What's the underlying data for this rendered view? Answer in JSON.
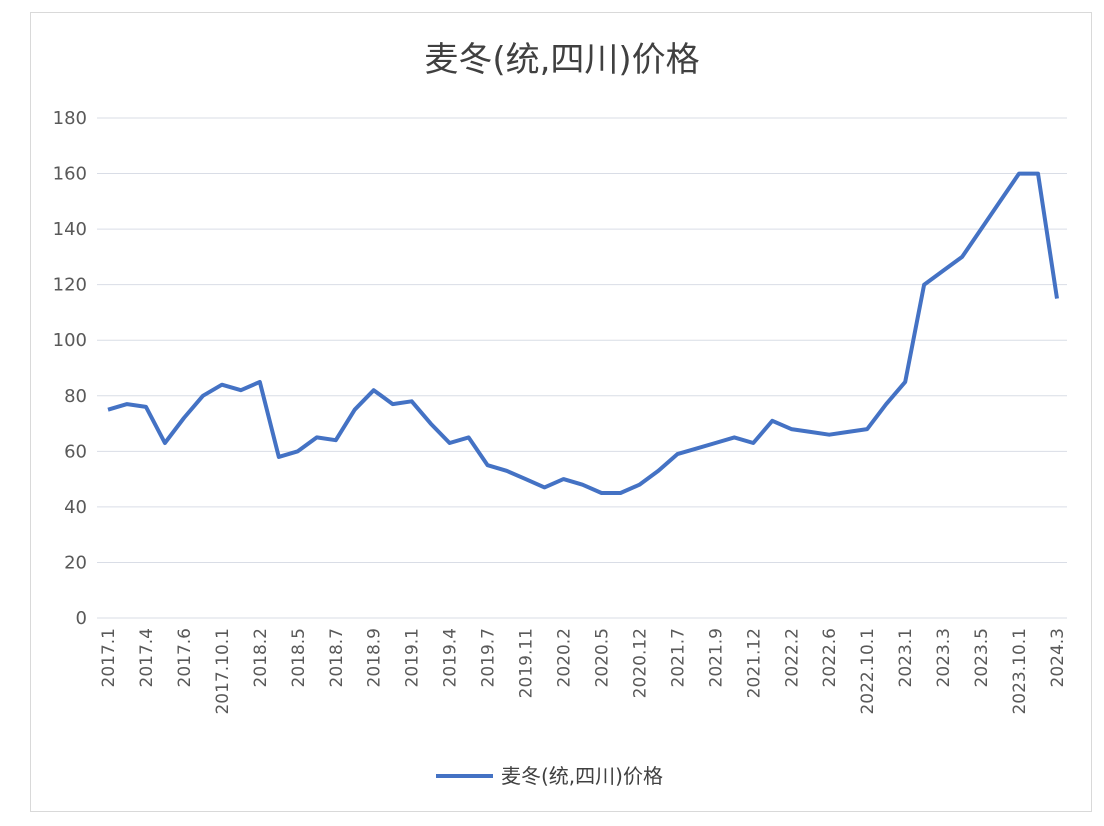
{
  "chart_data": {
    "type": "line",
    "title": "麦冬(统,四川)价格",
    "xlabel": "",
    "ylabel": "",
    "ylim": [
      0,
      180
    ],
    "yticks": [
      0,
      20,
      40,
      60,
      80,
      100,
      120,
      140,
      160,
      180
    ],
    "grid": true,
    "legend_position": "bottom",
    "x_tick_labels": [
      "2017.1",
      "2017.4",
      "2017.6",
      "2017.10.1",
      "2018.2",
      "2018.5",
      "2018.7",
      "2018.9",
      "2019.1",
      "2019.4",
      "2019.7",
      "2019.11",
      "2020.2",
      "2020.5",
      "2020.12",
      "2021.7",
      "2021.9",
      "2021.12",
      "2022.2",
      "2022.6",
      "2022.10.1",
      "2023.1",
      "2023.3",
      "2023.5",
      "2023.10.1",
      "2024.3"
    ],
    "x_tick_positions": [
      0,
      2,
      4,
      6,
      8,
      10,
      12,
      14,
      16,
      18,
      20,
      22,
      24,
      26,
      28,
      30,
      32,
      34,
      36,
      38,
      40,
      42,
      44,
      46,
      48,
      50
    ],
    "colors": {
      "series": "#4472c4"
    },
    "series": [
      {
        "name": "麦冬(统,四川)价格",
        "values": [
          75,
          77,
          76,
          63,
          72,
          80,
          84,
          82,
          85,
          58,
          60,
          65,
          64,
          75,
          82,
          77,
          78,
          70,
          63,
          65,
          55,
          53,
          50,
          47,
          50,
          48,
          45,
          45,
          48,
          53,
          59,
          61,
          63,
          65,
          63,
          71,
          68,
          67,
          66,
          67,
          68,
          77,
          85,
          120,
          125,
          130,
          140,
          150,
          160,
          160,
          115
        ]
      }
    ]
  }
}
